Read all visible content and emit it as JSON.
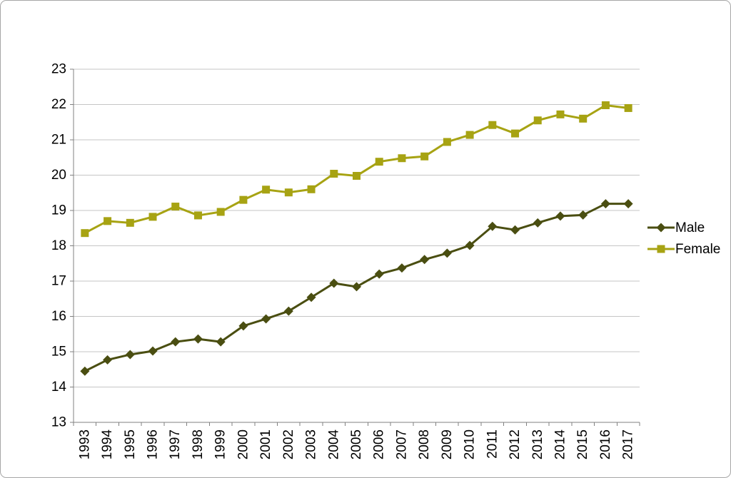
{
  "chart_data": {
    "type": "line",
    "categories": [
      "1993",
      "1994",
      "1995",
      "1996",
      "1997",
      "1998",
      "1999",
      "2000",
      "2001",
      "2002",
      "2003",
      "2004",
      "2005",
      "2006",
      "2007",
      "2008",
      "2009",
      "2010",
      "2011",
      "2012",
      "2013",
      "2014",
      "2015",
      "2016",
      "2017"
    ],
    "series": [
      {
        "name": "Male",
        "marker": "diamond",
        "color": "#4A4E11",
        "values": [
          14.45,
          14.77,
          14.92,
          15.02,
          15.28,
          15.36,
          15.28,
          15.73,
          15.93,
          16.15,
          16.54,
          16.94,
          16.84,
          17.2,
          17.37,
          17.61,
          17.79,
          18.01,
          18.55,
          18.45,
          18.65,
          18.84,
          18.87,
          19.19,
          19.19
        ]
      },
      {
        "name": "Female",
        "marker": "square",
        "color": "#A7A313",
        "values": [
          18.36,
          18.7,
          18.65,
          18.82,
          19.11,
          18.86,
          18.96,
          19.3,
          19.59,
          19.51,
          19.6,
          20.04,
          19.98,
          20.38,
          20.48,
          20.53,
          20.94,
          21.14,
          21.42,
          21.18,
          21.55,
          21.72,
          21.6,
          21.98,
          21.9
        ]
      }
    ],
    "xlabel": "",
    "ylabel": "",
    "ylim": [
      13,
      23
    ],
    "y_ticks": [
      13,
      14,
      15,
      16,
      17,
      18,
      19,
      20,
      21,
      22,
      23
    ],
    "grid": true,
    "legend_position": "right"
  },
  "styles": {
    "gridline_color": "#c6c6c6",
    "axis_color": "#808080",
    "tick_label_color": "#000000",
    "background_color": "#ffffff",
    "border_color": "#a6a6a6"
  }
}
